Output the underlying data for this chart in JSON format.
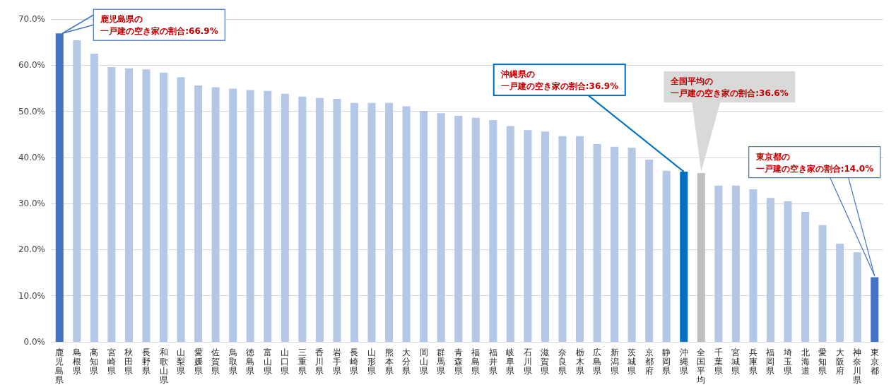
{
  "chart_data": {
    "type": "bar",
    "categories": [
      "鹿児島県",
      "島根県",
      "高知県",
      "宮崎県",
      "秋田県",
      "長野県",
      "和歌山県",
      "山梨県",
      "愛媛県",
      "佐賀県",
      "鳥取県",
      "徳島県",
      "富山県",
      "山口県",
      "三重県",
      "香川県",
      "岩手県",
      "長崎県",
      "山形県",
      "熊本県",
      "大分県",
      "岡山県",
      "群馬県",
      "青森県",
      "福島県",
      "福井県",
      "岐阜県",
      "石川県",
      "滋賀県",
      "奈良県",
      "栃木県",
      "広島県",
      "新潟県",
      "茨城県",
      "京都府",
      "静岡県",
      "沖縄県",
      "全国平均",
      "千葉県",
      "宮城県",
      "兵庫県",
      "福岡県",
      "埼玉県",
      "北海道",
      "愛知県",
      "大阪府",
      "神奈川県",
      "東京都"
    ],
    "values": [
      66.9,
      65.4,
      62.5,
      59.6,
      59.3,
      59.1,
      58.4,
      57.4,
      55.6,
      55.2,
      54.9,
      54.6,
      54.4,
      53.8,
      53.2,
      52.9,
      52.7,
      51.8,
      51.8,
      51.8,
      51.1,
      50.1,
      49.6,
      49.0,
      48.6,
      48.1,
      46.8,
      45.9,
      45.6,
      44.6,
      44.6,
      42.9,
      42.3,
      42.1,
      39.5,
      37.1,
      36.9,
      36.6,
      33.9,
      33.9,
      33.1,
      31.2,
      30.5,
      28.2,
      25.3,
      21.3,
      19.4,
      14.0
    ],
    "colors": [
      "#4472c4",
      "#b4c7e7",
      "#b4c7e7",
      "#b4c7e7",
      "#b4c7e7",
      "#b4c7e7",
      "#b4c7e7",
      "#b4c7e7",
      "#b4c7e7",
      "#b4c7e7",
      "#b4c7e7",
      "#b4c7e7",
      "#b4c7e7",
      "#b4c7e7",
      "#b4c7e7",
      "#b4c7e7",
      "#b4c7e7",
      "#b4c7e7",
      "#b4c7e7",
      "#b4c7e7",
      "#b4c7e7",
      "#b4c7e7",
      "#b4c7e7",
      "#b4c7e7",
      "#b4c7e7",
      "#b4c7e7",
      "#b4c7e7",
      "#b4c7e7",
      "#b4c7e7",
      "#b4c7e7",
      "#b4c7e7",
      "#b4c7e7",
      "#b4c7e7",
      "#b4c7e7",
      "#b4c7e7",
      "#b4c7e7",
      "#0070c0",
      "#bfbfbf",
      "#b4c7e7",
      "#b4c7e7",
      "#b4c7e7",
      "#b4c7e7",
      "#b4c7e7",
      "#b4c7e7",
      "#b4c7e7",
      "#b4c7e7",
      "#b4c7e7",
      "#4472c4"
    ],
    "ylim": [
      0,
      70
    ],
    "yticks": [
      {
        "value": 0,
        "label": "0.0%"
      },
      {
        "value": 10,
        "label": "10.0%"
      },
      {
        "value": 20,
        "label": "20.0%"
      },
      {
        "value": 30,
        "label": "30.0%"
      },
      {
        "value": 40,
        "label": "40.0%"
      },
      {
        "value": 50,
        "label": "50.0%"
      },
      {
        "value": 60,
        "label": "60.0%"
      },
      {
        "value": 70,
        "label": "70.0%"
      }
    ],
    "grid": "y",
    "annotations": [
      {
        "text": "鹿児島県の一戸建の空き家の割合:66.9%",
        "x": "鹿児島県",
        "y": 66.9
      },
      {
        "text": "沖縄県の一戸建の空き家の割合:36.9%",
        "x": "沖縄県",
        "y": 36.9
      },
      {
        "text": "全国平均の一戸建の空き家の割合:36.6%",
        "x": "全国平均",
        "y": 36.6
      },
      {
        "text": "東京都の一戸建の空き家の割合:14.0%",
        "x": "東京都",
        "y": 14.0
      }
    ]
  }
}
